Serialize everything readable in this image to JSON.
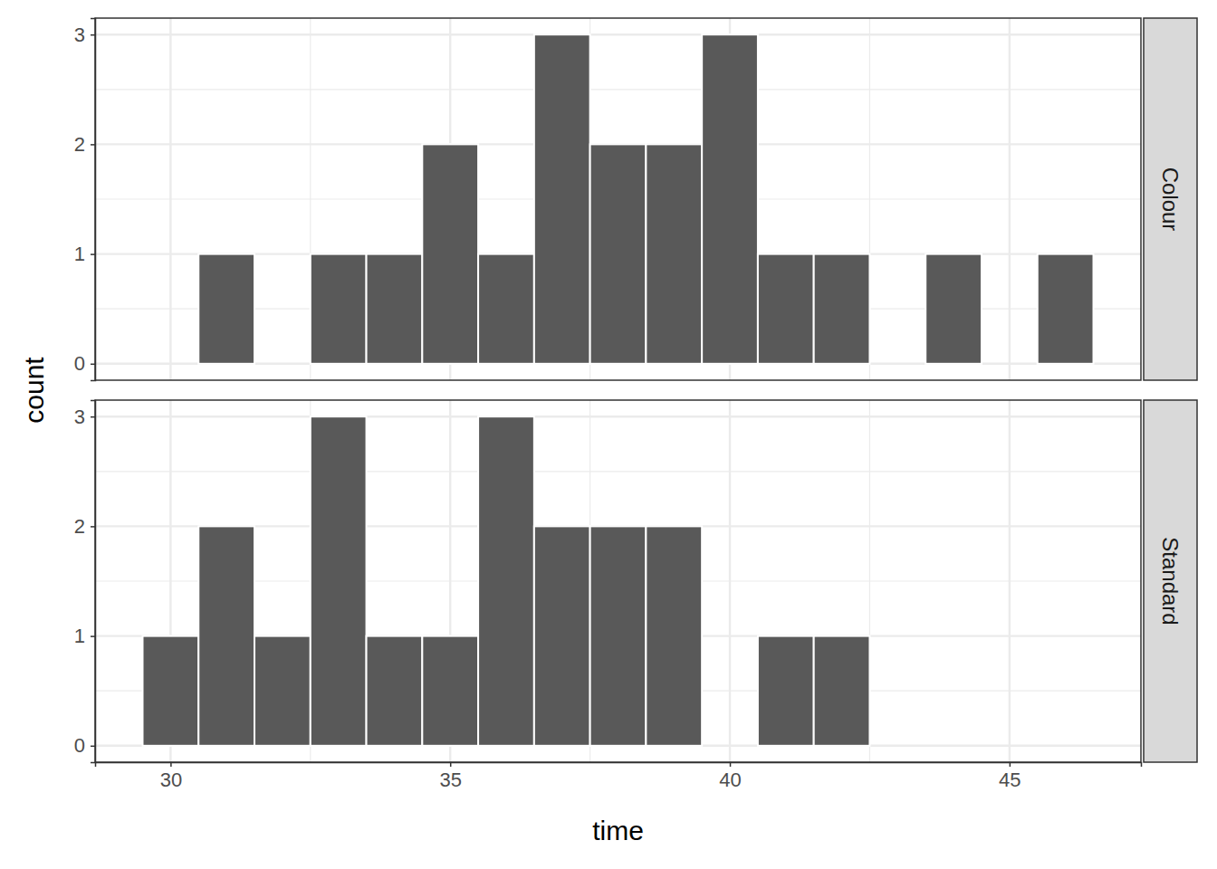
{
  "chart_data": {
    "type": "histogram",
    "x_label": "time",
    "y_label": "count",
    "bins": [
      29.5,
      30.5,
      31.5,
      32.5,
      33.5,
      34.5,
      35.5,
      36.5,
      37.5,
      38.5,
      39.5,
      40.5,
      41.5,
      42.5,
      43.5,
      44.5,
      45.5,
      46.5
    ],
    "series": [
      {
        "name": "Colour",
        "color": "#595959",
        "values": [
          0,
          1,
          0,
          1,
          1,
          2,
          1,
          3,
          2,
          2,
          3,
          1,
          1,
          0,
          1,
          0,
          1
        ]
      },
      {
        "name": "Standard",
        "color": "#595959",
        "values": [
          1,
          2,
          1,
          3,
          1,
          1,
          3,
          2,
          2,
          2,
          0,
          1,
          1,
          0,
          0,
          0,
          0
        ]
      }
    ],
    "xlim": [
      28.65,
      47.35
    ],
    "ylim": [
      -0.15,
      3.15
    ],
    "xticks": [
      30,
      35,
      40,
      45
    ],
    "yticks": [
      0,
      1,
      2,
      3
    ],
    "grid": true
  }
}
